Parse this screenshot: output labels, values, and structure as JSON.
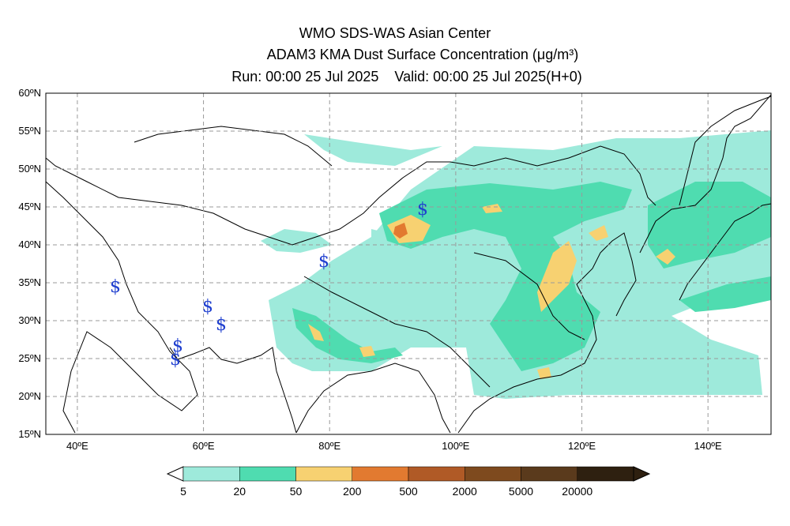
{
  "title": {
    "line1": "WMO SDS-WAS Asian Center",
    "line2": "ADAM3 KMA Dust Surface Concentration (μg/m³)",
    "line3": "Run: 00:00 25 Jul 2025    Valid: 00:00 25 Jul 2025(H+0)"
  },
  "map": {
    "lat_labels": [
      "60ºN",
      "55ºN",
      "50ºN",
      "45ºN",
      "40ºN",
      "35ºN",
      "30ºN",
      "25ºN",
      "20ºN",
      "15ºN"
    ],
    "lon_labels": [
      "40ºE",
      "60ºE",
      "80ºE",
      "100ºE",
      "120ºE",
      "140ºE"
    ],
    "lat_range": [
      15,
      60
    ],
    "lon_range": [
      35,
      150
    ],
    "grid": true,
    "station_symbol": "$",
    "station_color": "#1f3fcf"
  },
  "colorbar": {
    "levels": [
      "5",
      "20",
      "50",
      "200",
      "500",
      "2000",
      "5000",
      "20000"
    ],
    "colors": [
      "#9eeadb",
      "#4fdcb0",
      "#f7d171",
      "#e27a30",
      "#b05a26",
      "#7e4a1e",
      "#5a3a1c",
      "#2e2010"
    ]
  }
}
